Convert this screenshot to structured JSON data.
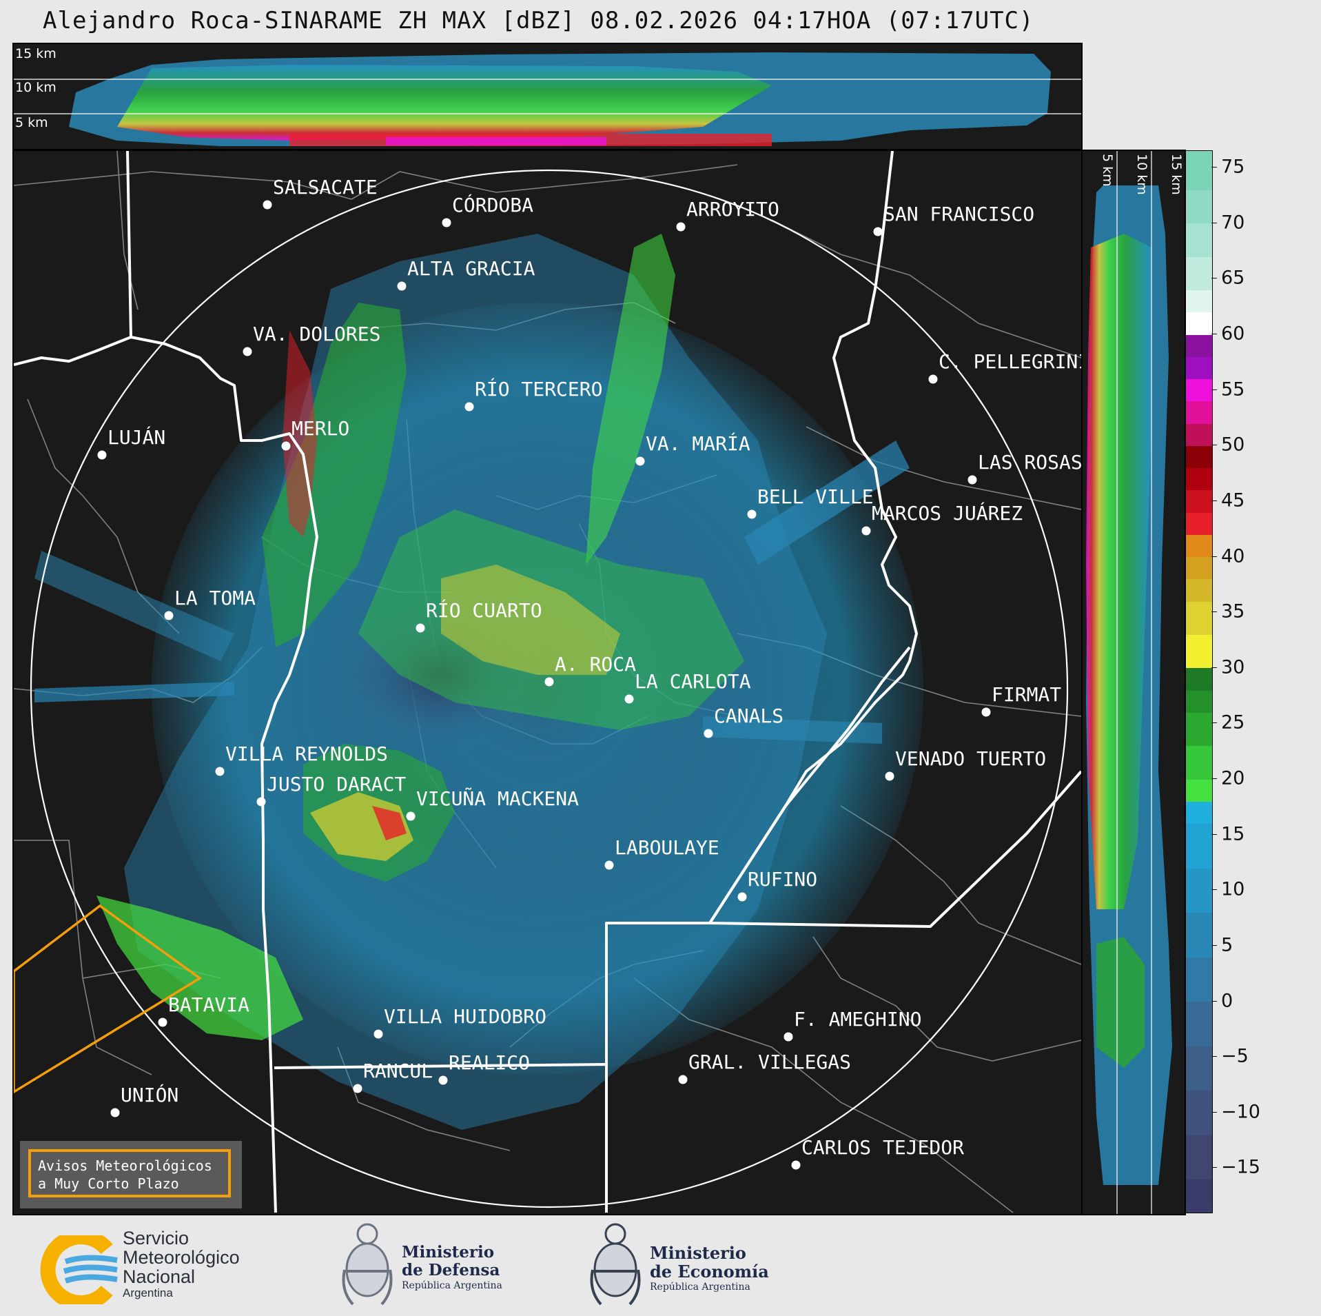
{
  "title": "Alejandro Roca-SINARAME ZH MAX [dBZ] 08.02.2026 04:17HOA (07:17UTC)",
  "top_strip": {
    "alt_labels": [
      "15 km",
      "10 km",
      "5 km"
    ]
  },
  "side_strip": {
    "alt_labels": [
      "5 km",
      "10 km",
      "15 km"
    ]
  },
  "colorbar": {
    "unit": "dBZ",
    "ticks": [
      "75",
      "70",
      "65",
      "60",
      "55",
      "50",
      "45",
      "40",
      "35",
      "30",
      "25",
      "20",
      "15",
      "10",
      "5",
      "0",
      "−5",
      "−10",
      "−15"
    ],
    "tick_values": [
      75,
      70,
      65,
      60,
      55,
      50,
      45,
      40,
      35,
      30,
      25,
      20,
      15,
      10,
      5,
      0,
      -5,
      -10,
      -15
    ],
    "range": [
      -19,
      76.5
    ],
    "bands": [
      {
        "from": -19,
        "to": -16,
        "color": "#3a3d6a"
      },
      {
        "from": -16,
        "to": -12,
        "color": "#404670"
      },
      {
        "from": -12,
        "to": -8,
        "color": "#3f527c"
      },
      {
        "from": -8,
        "to": -4,
        "color": "#3d5f88"
      },
      {
        "from": -4,
        "to": 0,
        "color": "#386c96"
      },
      {
        "from": 0,
        "to": 4,
        "color": "#2f7aa6"
      },
      {
        "from": 4,
        "to": 8,
        "color": "#2a88b6"
      },
      {
        "from": 8,
        "to": 12,
        "color": "#2596c6"
      },
      {
        "from": 12,
        "to": 16,
        "color": "#21a3d3"
      },
      {
        "from": 16,
        "to": 18,
        "color": "#1fb0df"
      },
      {
        "from": 18,
        "to": 20,
        "color": "#44e040"
      },
      {
        "from": 20,
        "to": 23,
        "color": "#36c83a"
      },
      {
        "from": 23,
        "to": 26,
        "color": "#2aa830"
      },
      {
        "from": 26,
        "to": 28,
        "color": "#23902a"
      },
      {
        "from": 28,
        "to": 30,
        "color": "#1e7a24"
      },
      {
        "from": 30,
        "to": 33,
        "color": "#f2ee30"
      },
      {
        "from": 33,
        "to": 36,
        "color": "#ddd230"
      },
      {
        "from": 36,
        "to": 38,
        "color": "#d4b82a"
      },
      {
        "from": 38,
        "to": 40,
        "color": "#d4a020"
      },
      {
        "from": 40,
        "to": 42,
        "color": "#e08818"
      },
      {
        "from": 42,
        "to": 44,
        "color": "#e8202a"
      },
      {
        "from": 44,
        "to": 46,
        "color": "#cc1020"
      },
      {
        "from": 46,
        "to": 48,
        "color": "#b00010"
      },
      {
        "from": 48,
        "to": 50,
        "color": "#8c0008"
      },
      {
        "from": 50,
        "to": 52,
        "color": "#c0105a"
      },
      {
        "from": 52,
        "to": 54,
        "color": "#e0109a"
      },
      {
        "from": 54,
        "to": 56,
        "color": "#ee10dd"
      },
      {
        "from": 56,
        "to": 58,
        "color": "#a010c0"
      },
      {
        "from": 58,
        "to": 60,
        "color": "#8a10a0"
      },
      {
        "from": 60,
        "to": 62,
        "color": "#ffffff"
      },
      {
        "from": 62,
        "to": 64,
        "color": "#e0f5ee"
      },
      {
        "from": 64,
        "to": 67,
        "color": "#c2ebe0"
      },
      {
        "from": 67,
        "to": 70,
        "color": "#a6e2d2"
      },
      {
        "from": 70,
        "to": 73,
        "color": "#8edac4"
      },
      {
        "from": 73,
        "to": 76.5,
        "color": "#7cd4b8"
      }
    ]
  },
  "cities": [
    {
      "name": "SALSACATE",
      "icon": "city-dot"
    },
    {
      "name": "CÓRDOBA",
      "icon": "city-dot"
    },
    {
      "name": "ARROYITO",
      "icon": "city-dot"
    },
    {
      "name": "SAN FRANCISCO",
      "icon": "city-dot"
    },
    {
      "name": "ALTA GRACIA",
      "icon": "city-dot"
    },
    {
      "name": "VA. DOLORES",
      "icon": "city-dot"
    },
    {
      "name": "C. PELLEGRINI",
      "icon": "city-dot"
    },
    {
      "name": "RÍO TERCERO",
      "icon": "city-dot"
    },
    {
      "name": "LUJÁN",
      "icon": "city-dot"
    },
    {
      "name": "MERLO",
      "icon": "city-dot"
    },
    {
      "name": "VA. MARÍA",
      "icon": "city-dot"
    },
    {
      "name": "LAS ROSAS",
      "icon": "city-dot"
    },
    {
      "name": "BELL VILLE",
      "icon": "city-dot"
    },
    {
      "name": "MARCOS JUÁREZ",
      "icon": "city-dot"
    },
    {
      "name": "LA TOMA",
      "icon": "city-dot"
    },
    {
      "name": "RÍO CUARTO",
      "icon": "city-dot"
    },
    {
      "name": "A. ROCA",
      "icon": "radar-site-dot"
    },
    {
      "name": "LA CARLOTA",
      "icon": "city-dot"
    },
    {
      "name": "FIRMAT",
      "icon": "city-dot"
    },
    {
      "name": "CANALS",
      "icon": "city-dot"
    },
    {
      "name": "VILLA REYNOLDS",
      "icon": "city-dot"
    },
    {
      "name": "VENADO TUERTO",
      "icon": "city-dot"
    },
    {
      "name": "JUSTO DARACT",
      "icon": "city-dot"
    },
    {
      "name": "VICUÑA MACKENA",
      "icon": "city-dot"
    },
    {
      "name": "LABOULAYE",
      "icon": "city-dot"
    },
    {
      "name": "RUFINO",
      "icon": "city-dot"
    },
    {
      "name": "BATAVIA",
      "icon": "city-dot"
    },
    {
      "name": "VILLA HUIDOBRO",
      "icon": "city-dot"
    },
    {
      "name": "F. AMEGHINO",
      "icon": "city-dot"
    },
    {
      "name": "RANCUL",
      "icon": "city-dot"
    },
    {
      "name": "REALICO",
      "icon": "city-dot"
    },
    {
      "name": "GRAL. VILLEGAS",
      "icon": "city-dot"
    },
    {
      "name": "UNIÓN",
      "icon": "city-dot"
    },
    {
      "name": "CARLOS TEJEDOR",
      "icon": "city-dot"
    }
  ],
  "map_colors": {
    "background": "#1a1a1a",
    "province_border": "#ffffff",
    "department_border": "#808080",
    "range_ring": "#ffffff",
    "warning_polygon": "#f59e0b"
  },
  "avisos": {
    "line1": "Avisos Meteorológicos",
    "line2": "a Muy Corto Plazo"
  },
  "logos": {
    "smn": {
      "line1": "Servicio",
      "line2": "Meteorológico",
      "line3": "Nacional",
      "line4": "Argentina",
      "icon": "smn-logo-icon"
    },
    "defensa": {
      "line1": "Ministerio",
      "line2": "de Defensa",
      "line3": "República Argentina",
      "icon": "national-coat-of-arms-icon"
    },
    "economia": {
      "line1": "Ministerio",
      "line2": "de Economía",
      "line3": "República Argentina",
      "icon": "national-coat-of-arms-icon"
    }
  }
}
